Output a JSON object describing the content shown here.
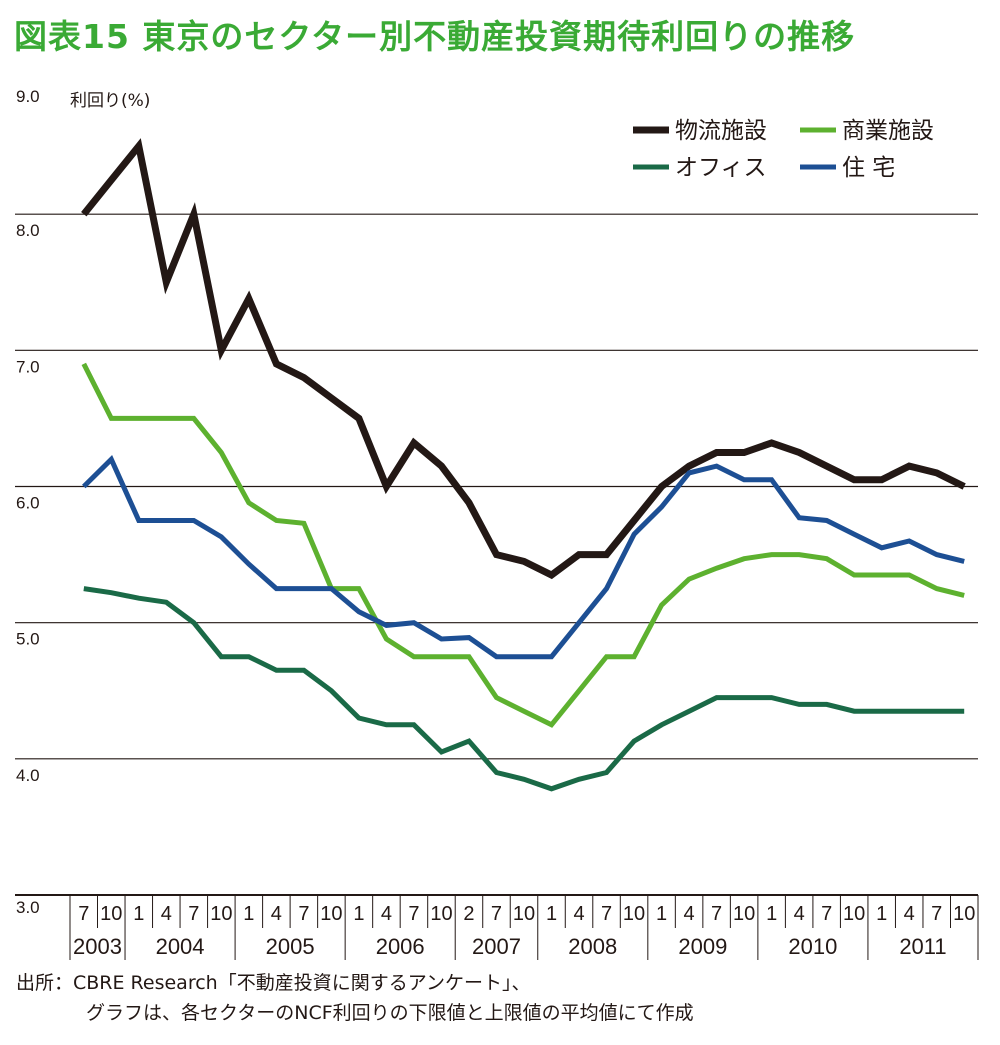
{
  "title": "図表15 東京のセクター別不動産投資期待利回りの推移",
  "source_line1": "出所：CBRE Research「不動産投資に関するアンケート」、",
  "source_line2": "グラフは、各セクターのNCF利回りの下限値と上限値の平均値にて作成",
  "chart_data": {
    "type": "line",
    "ylabel": "利回り(%)",
    "ylim": [
      3.0,
      9.0
    ],
    "yticks": [
      "9.0",
      "8.0",
      "7.0",
      "6.0",
      "5.0",
      "4.0",
      "3.0"
    ],
    "grid": true,
    "legend_position": "top-right",
    "x_months": [
      "7",
      "10",
      "1",
      "4",
      "7",
      "10",
      "1",
      "4",
      "7",
      "10",
      "1",
      "4",
      "7",
      "10",
      "2",
      "7",
      "10",
      "1",
      "4",
      "7",
      "10",
      "1",
      "4",
      "7",
      "10",
      "1",
      "4",
      "7",
      "10",
      "1",
      "4",
      "7",
      "10"
    ],
    "x_years": [
      {
        "label": "2003",
        "span": 2
      },
      {
        "label": "2004",
        "span": 4
      },
      {
        "label": "2005",
        "span": 4
      },
      {
        "label": "2006",
        "span": 4
      },
      {
        "label": "2007",
        "span": 3
      },
      {
        "label": "2008",
        "span": 4
      },
      {
        "label": "2009",
        "span": 4
      },
      {
        "label": "2010",
        "span": 4
      },
      {
        "label": "2011",
        "span": 4
      }
    ],
    "series": [
      {
        "name": "物流施設",
        "color": "#231815",
        "values": [
          8.0,
          8.25,
          8.5,
          7.5,
          8.0,
          7.0,
          7.38,
          6.9,
          6.8,
          6.65,
          6.5,
          6.0,
          6.32,
          6.15,
          5.88,
          5.5,
          5.45,
          5.35,
          5.5,
          5.5,
          5.75,
          6.0,
          6.15,
          6.25,
          6.25,
          6.32,
          6.25,
          6.15,
          6.05,
          6.05,
          6.15,
          6.1,
          6.0
        ]
      },
      {
        "name": "商業施設",
        "color": "#5db12f",
        "values": [
          6.9,
          6.5,
          6.5,
          6.5,
          6.5,
          6.25,
          5.88,
          5.75,
          5.73,
          5.25,
          5.25,
          4.88,
          4.75,
          4.75,
          4.75,
          4.45,
          4.35,
          4.25,
          4.5,
          4.75,
          4.75,
          5.13,
          5.32,
          5.4,
          5.47,
          5.5,
          5.5,
          5.47,
          5.35,
          5.35,
          5.35,
          5.25,
          5.2
        ]
      },
      {
        "name": "オフィス",
        "color": "#1a6a47",
        "values": [
          5.25,
          5.22,
          5.18,
          5.15,
          5.0,
          4.75,
          4.75,
          4.65,
          4.65,
          4.5,
          4.3,
          4.25,
          4.25,
          4.05,
          4.13,
          3.9,
          3.85,
          3.78,
          3.85,
          3.9,
          4.13,
          4.25,
          4.35,
          4.45,
          4.45,
          4.45,
          4.4,
          4.4,
          4.35,
          4.35,
          4.35,
          4.35,
          4.35
        ]
      },
      {
        "name": "住 宅",
        "color": "#1d4f94",
        "values": [
          6.0,
          6.2,
          5.75,
          5.75,
          5.75,
          5.63,
          5.43,
          5.25,
          5.25,
          5.25,
          5.08,
          4.98,
          5.0,
          4.88,
          4.89,
          4.75,
          4.75,
          4.75,
          5.0,
          5.25,
          5.65,
          5.85,
          6.1,
          6.15,
          6.05,
          6.05,
          5.77,
          5.75,
          5.65,
          5.55,
          5.6,
          5.5,
          5.45
        ]
      }
    ]
  }
}
